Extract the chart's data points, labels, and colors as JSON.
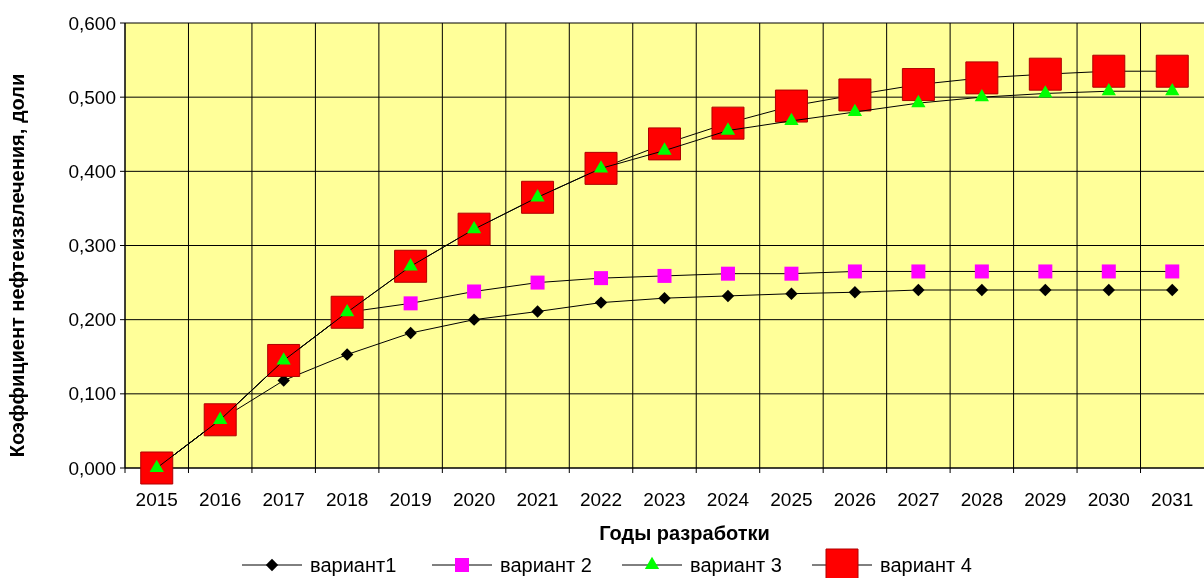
{
  "chart_data": {
    "type": "line",
    "xlabel": "Годы разработки",
    "ylabel": "Коэффициент нефтеизвлечения, доли",
    "categories": [
      "2015",
      "2016",
      "2017",
      "2018",
      "2019",
      "2020",
      "2021",
      "2022",
      "2023",
      "2024",
      "2025",
      "2026",
      "2027",
      "2028",
      "2029",
      "2030",
      "2031"
    ],
    "ylim": [
      0,
      0.6
    ],
    "yticks": [
      {
        "value": 0,
        "label": "0,000"
      },
      {
        "value": 0.1,
        "label": "0,100"
      },
      {
        "value": 0.2,
        "label": "0,200"
      },
      {
        "value": 0.3,
        "label": "0,300"
      },
      {
        "value": 0.4,
        "label": "0,400"
      },
      {
        "value": 0.5,
        "label": "0,500"
      },
      {
        "value": 0.6,
        "label": "0,600"
      }
    ],
    "grid": true,
    "legend": "bottom",
    "line_style": "solid",
    "series": [
      {
        "name": "вариант1",
        "color": "#000000",
        "marker": "diamond",
        "values": [
          0,
          0.065,
          0.118,
          0.153,
          0.182,
          0.2,
          0.211,
          0.223,
          0.229,
          0.232,
          0.235,
          0.237,
          0.24,
          0.24,
          0.24,
          0.24,
          0.24
        ]
      },
      {
        "name": "вариант 2",
        "color": "#ff00ff",
        "marker": "square",
        "values": [
          0,
          0.065,
          0.145,
          0.21,
          0.222,
          0.238,
          0.25,
          0.256,
          0.259,
          0.262,
          0.262,
          0.265,
          0.265,
          0.265,
          0.265,
          0.265,
          0.265
        ]
      },
      {
        "name": "вариант 3",
        "color": "#00ff00",
        "marker": "triangle",
        "values": [
          0,
          0.065,
          0.145,
          0.21,
          0.272,
          0.322,
          0.365,
          0.404,
          0.428,
          0.455,
          0.468,
          0.48,
          0.492,
          0.5,
          0.505,
          0.508,
          0.508
        ]
      },
      {
        "name": "вариант 4",
        "color": "#ff0000",
        "marker": "square",
        "values": [
          0,
          0.065,
          0.145,
          0.21,
          0.272,
          0.322,
          0.365,
          0.404,
          0.437,
          0.465,
          0.488,
          0.503,
          0.517,
          0.526,
          0.531,
          0.535,
          0.535
        ]
      }
    ]
  }
}
